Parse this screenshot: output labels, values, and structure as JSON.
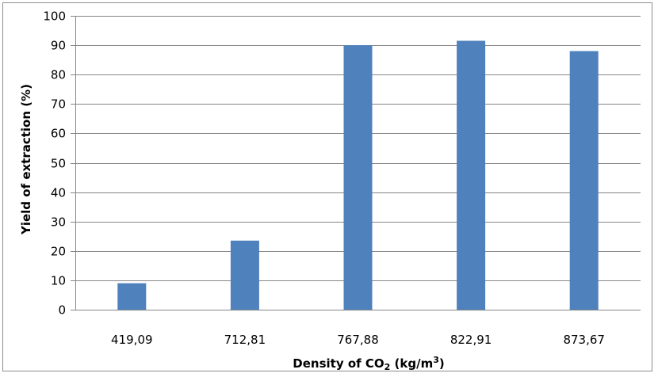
{
  "chart_data": {
    "type": "bar",
    "categories": [
      "419,09",
      "712,81",
      "767,88",
      "822,91",
      "873,67"
    ],
    "values": [
      9,
      23.5,
      90,
      91.5,
      88
    ],
    "title": "",
    "xlabel": "Density of CO",
    "xlabel_subscript": "2",
    "xlabel_unit": " (kg/m",
    "xlabel_unit_sup": "3",
    "xlabel_unit_close": ")",
    "ylabel": "Yield of extraction (%)",
    "ylim": [
      0,
      100
    ],
    "yticks": [
      "0",
      "10",
      "20",
      "30",
      "40",
      "50",
      "60",
      "70",
      "80",
      "90",
      "100"
    ],
    "grid": true,
    "legend": "none",
    "colors": {
      "bar": "#4f81bd",
      "grid": "#868686"
    }
  }
}
